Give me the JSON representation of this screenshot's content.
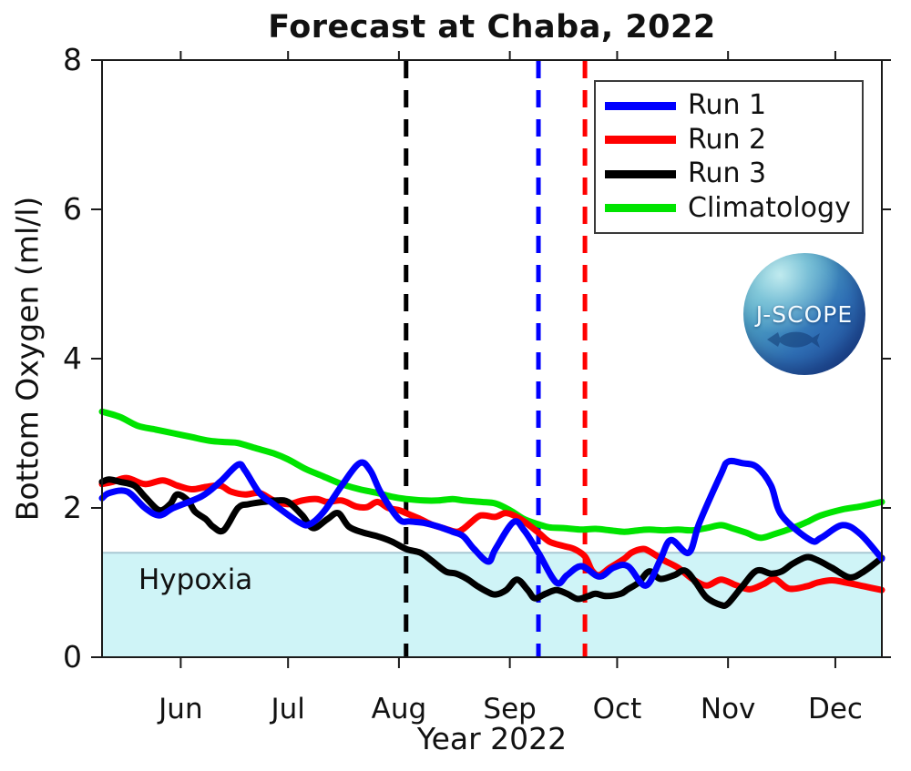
{
  "title": "Forecast at Chaba, 2022",
  "logo": {
    "text": "J-SCOPE"
  },
  "colors": {
    "background": "#FFFFFF",
    "axis": "#1A1A1A",
    "run1": "#0000FF",
    "run2": "#FF0000",
    "run3": "#000000",
    "climatology": "#00E400",
    "hypoxia_fill": "#CFF4F7",
    "hypoxia_edge": "#A9C8D4"
  },
  "legend": {
    "position": "upper right",
    "items": [
      {
        "label": "Run 1",
        "color": "#0000FF"
      },
      {
        "label": "Run 2",
        "color": "#FF0000"
      },
      {
        "label": "Run 3",
        "color": "#000000"
      },
      {
        "label": "Climatology",
        "color": "#00E400"
      }
    ]
  },
  "chart_data": {
    "type": "line",
    "title": "Forecast at Chaba, 2022",
    "xlabel": "Year 2022",
    "ylabel": "Bottom Oxygen (ml/l)",
    "ylim": [
      0,
      8
    ],
    "yticks": [
      0,
      2,
      4,
      6,
      8
    ],
    "grid": false,
    "legend_position": "upper right",
    "x_axis": {
      "unit": "day_of_year_2022",
      "range": [
        130,
        348
      ],
      "month_ticks": [
        {
          "label": "Jun",
          "day": 152
        },
        {
          "label": "Jul",
          "day": 182
        },
        {
          "label": "Aug",
          "day": 213
        },
        {
          "label": "Sep",
          "day": 244
        },
        {
          "label": "Oct",
          "day": 274
        },
        {
          "label": "Nov",
          "day": 305
        },
        {
          "label": "Dec",
          "day": 335
        }
      ]
    },
    "hypoxia": {
      "label": "Hypoxia",
      "threshold_mll": 1.4
    },
    "vlines": [
      {
        "name": "run3-start-vline",
        "color": "#000000",
        "day": 215,
        "date": "Aug 3",
        "style": "dashed"
      },
      {
        "name": "run1-start-vline",
        "color": "#0000FF",
        "day": 252,
        "date": "Sep 9",
        "style": "dashed"
      },
      {
        "name": "run2-start-vline",
        "color": "#FF0000",
        "day": 265,
        "date": "Sep 22",
        "style": "dashed"
      }
    ],
    "series": [
      {
        "name": "Climatology",
        "color": "#00E400",
        "points": [
          [
            130,
            3.29
          ],
          [
            135,
            3.22
          ],
          [
            140,
            3.1
          ],
          [
            145,
            3.05
          ],
          [
            150,
            3.0
          ],
          [
            155,
            2.95
          ],
          [
            160,
            2.9
          ],
          [
            165,
            2.88
          ],
          [
            168,
            2.87
          ],
          [
            173,
            2.8
          ],
          [
            178,
            2.73
          ],
          [
            182,
            2.65
          ],
          [
            187,
            2.52
          ],
          [
            192,
            2.42
          ],
          [
            197,
            2.32
          ],
          [
            202,
            2.25
          ],
          [
            207,
            2.2
          ],
          [
            211,
            2.15
          ],
          [
            215,
            2.12
          ],
          [
            220,
            2.1
          ],
          [
            224,
            2.1
          ],
          [
            228,
            2.12
          ],
          [
            231,
            2.1
          ],
          [
            236,
            2.08
          ],
          [
            240,
            2.06
          ],
          [
            244,
            1.97
          ],
          [
            248,
            1.85
          ],
          [
            252,
            1.78
          ],
          [
            255,
            1.74
          ],
          [
            259,
            1.73
          ],
          [
            264,
            1.71
          ],
          [
            268,
            1.72
          ],
          [
            272,
            1.7
          ],
          [
            276,
            1.68
          ],
          [
            280,
            1.7
          ],
          [
            283,
            1.71
          ],
          [
            287,
            1.7
          ],
          [
            291,
            1.71
          ],
          [
            295,
            1.7
          ],
          [
            299,
            1.73
          ],
          [
            303,
            1.77
          ],
          [
            306,
            1.73
          ],
          [
            310,
            1.67
          ],
          [
            314,
            1.6
          ],
          [
            318,
            1.65
          ],
          [
            323,
            1.73
          ],
          [
            327,
            1.81
          ],
          [
            331,
            1.9
          ],
          [
            337,
            1.98
          ],
          [
            342,
            2.02
          ],
          [
            348,
            2.08
          ]
        ]
      },
      {
        "name": "Run 2",
        "color": "#FF0000",
        "points": [
          [
            130,
            2.32
          ],
          [
            133,
            2.35
          ],
          [
            137,
            2.4
          ],
          [
            142,
            2.32
          ],
          [
            147,
            2.37
          ],
          [
            151,
            2.3
          ],
          [
            155,
            2.25
          ],
          [
            159,
            2.28
          ],
          [
            163,
            2.3
          ],
          [
            166,
            2.22
          ],
          [
            170,
            2.18
          ],
          [
            174,
            2.2
          ],
          [
            178,
            2.1
          ],
          [
            182,
            2.05
          ],
          [
            186,
            2.1
          ],
          [
            190,
            2.12
          ],
          [
            193,
            2.08
          ],
          [
            197,
            2.1
          ],
          [
            201,
            2.02
          ],
          [
            204,
            2.01
          ],
          [
            207,
            2.08
          ],
          [
            210,
            2.0
          ],
          [
            213,
            1.97
          ],
          [
            215,
            1.93
          ],
          [
            219,
            1.85
          ],
          [
            222,
            1.78
          ],
          [
            226,
            1.72
          ],
          [
            229,
            1.68
          ],
          [
            231,
            1.72
          ],
          [
            235,
            1.88
          ],
          [
            237,
            1.9
          ],
          [
            240,
            1.88
          ],
          [
            243,
            1.93
          ],
          [
            247,
            1.85
          ],
          [
            252,
            1.67
          ],
          [
            255,
            1.55
          ],
          [
            259,
            1.49
          ],
          [
            262,
            1.45
          ],
          [
            265,
            1.35
          ],
          [
            267,
            1.16
          ],
          [
            269,
            1.1
          ],
          [
            272,
            1.2
          ],
          [
            276,
            1.32
          ],
          [
            278,
            1.4
          ],
          [
            281,
            1.45
          ],
          [
            283,
            1.42
          ],
          [
            287,
            1.3
          ],
          [
            291,
            1.2
          ],
          [
            295,
            1.05
          ],
          [
            299,
            0.96
          ],
          [
            303,
            1.04
          ],
          [
            307,
            0.97
          ],
          [
            311,
            0.91
          ],
          [
            315,
            0.98
          ],
          [
            318,
            1.05
          ],
          [
            322,
            0.92
          ],
          [
            327,
            0.95
          ],
          [
            330,
            1.0
          ],
          [
            334,
            1.03
          ],
          [
            338,
            1.0
          ],
          [
            343,
            0.95
          ],
          [
            348,
            0.9
          ]
        ]
      },
      {
        "name": "Run 3",
        "color": "#000000",
        "points": [
          [
            130,
            2.35
          ],
          [
            132,
            2.38
          ],
          [
            135,
            2.35
          ],
          [
            139,
            2.3
          ],
          [
            142,
            2.15
          ],
          [
            146,
            1.97
          ],
          [
            149,
            2.05
          ],
          [
            151,
            2.18
          ],
          [
            154,
            2.1
          ],
          [
            156,
            1.95
          ],
          [
            159,
            1.85
          ],
          [
            161,
            1.75
          ],
          [
            164,
            1.7
          ],
          [
            168,
            2.0
          ],
          [
            171,
            2.05
          ],
          [
            175,
            2.08
          ],
          [
            179,
            2.1
          ],
          [
            182,
            2.08
          ],
          [
            186,
            1.9
          ],
          [
            189,
            1.73
          ],
          [
            193,
            1.85
          ],
          [
            196,
            1.93
          ],
          [
            199,
            1.75
          ],
          [
            203,
            1.67
          ],
          [
            207,
            1.62
          ],
          [
            211,
            1.55
          ],
          [
            215,
            1.45
          ],
          [
            219,
            1.4
          ],
          [
            222,
            1.3
          ],
          [
            226,
            1.15
          ],
          [
            229,
            1.12
          ],
          [
            232,
            1.05
          ],
          [
            235,
            0.95
          ],
          [
            238,
            0.87
          ],
          [
            240,
            0.84
          ],
          [
            243,
            0.9
          ],
          [
            246,
            1.04
          ],
          [
            249,
            0.9
          ],
          [
            251,
            0.79
          ],
          [
            254,
            0.85
          ],
          [
            257,
            0.9
          ],
          [
            260,
            0.85
          ],
          [
            263,
            0.78
          ],
          [
            266,
            0.82
          ],
          [
            268,
            0.85
          ],
          [
            271,
            0.82
          ],
          [
            275,
            0.85
          ],
          [
            277,
            0.91
          ],
          [
            280,
            1.0
          ],
          [
            283,
            1.15
          ],
          [
            286,
            1.05
          ],
          [
            290,
            1.1
          ],
          [
            293,
            1.16
          ],
          [
            296,
            1.0
          ],
          [
            299,
            0.8
          ],
          [
            303,
            0.7
          ],
          [
            305,
            0.72
          ],
          [
            309,
            0.95
          ],
          [
            313,
            1.16
          ],
          [
            317,
            1.12
          ],
          [
            320,
            1.15
          ],
          [
            323,
            1.25
          ],
          [
            327,
            1.34
          ],
          [
            330,
            1.3
          ],
          [
            334,
            1.2
          ],
          [
            339,
            1.07
          ],
          [
            343,
            1.15
          ],
          [
            348,
            1.33
          ]
        ]
      },
      {
        "name": "Run 1",
        "color": "#0000FF",
        "points": [
          [
            130,
            2.13
          ],
          [
            132,
            2.2
          ],
          [
            137,
            2.22
          ],
          [
            142,
            2.0
          ],
          [
            146,
            1.9
          ],
          [
            150,
            2.0
          ],
          [
            158,
            2.16
          ],
          [
            163,
            2.35
          ],
          [
            168,
            2.58
          ],
          [
            170,
            2.5
          ],
          [
            174,
            2.2
          ],
          [
            178,
            2.05
          ],
          [
            185,
            1.81
          ],
          [
            188,
            1.78
          ],
          [
            192,
            1.95
          ],
          [
            197,
            2.3
          ],
          [
            202,
            2.6
          ],
          [
            205,
            2.5
          ],
          [
            208,
            2.2
          ],
          [
            213,
            1.85
          ],
          [
            216,
            1.82
          ],
          [
            220,
            1.8
          ],
          [
            224,
            1.75
          ],
          [
            228,
            1.68
          ],
          [
            231,
            1.62
          ],
          [
            234,
            1.45
          ],
          [
            238,
            1.28
          ],
          [
            240,
            1.45
          ],
          [
            245,
            1.81
          ],
          [
            248,
            1.7
          ],
          [
            252,
            1.4
          ],
          [
            257,
            1.0
          ],
          [
            260,
            1.1
          ],
          [
            264,
            1.22
          ],
          [
            269,
            1.08
          ],
          [
            273,
            1.2
          ],
          [
            277,
            1.22
          ],
          [
            282,
            0.96
          ],
          [
            286,
            1.3
          ],
          [
            289,
            1.57
          ],
          [
            294,
            1.4
          ],
          [
            297,
            1.8
          ],
          [
            303,
            2.45
          ],
          [
            305,
            2.62
          ],
          [
            309,
            2.6
          ],
          [
            313,
            2.55
          ],
          [
            317,
            2.3
          ],
          [
            320,
            1.9
          ],
          [
            328,
            1.57
          ],
          [
            331,
            1.6
          ],
          [
            337,
            1.77
          ],
          [
            342,
            1.65
          ],
          [
            348,
            1.32
          ]
        ]
      }
    ]
  }
}
